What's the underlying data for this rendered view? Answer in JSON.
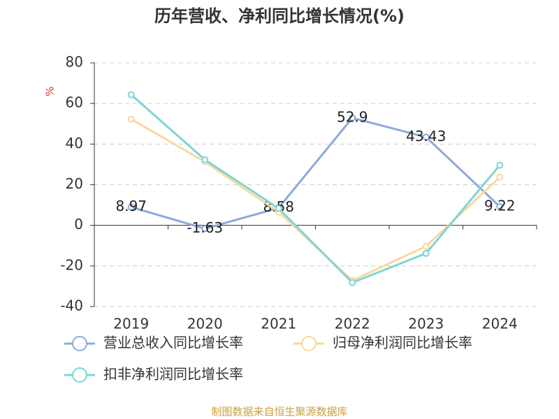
{
  "chart_data": {
    "type": "line",
    "title": "历年营收、净利同比增长情况(%)",
    "y_label": "%",
    "source": "制图数据来自恒生聚源数据库",
    "categories": [
      "2019",
      "2020",
      "2021",
      "2022",
      "2023",
      "2024"
    ],
    "series": [
      {
        "name": "营业总收入同比增长率",
        "color": "#8eaad8",
        "values": [
          8.97,
          -1.63,
          8.58,
          52.9,
          43.43,
          9.22
        ],
        "show_labels": true
      },
      {
        "name": "归母净利润同比增长率",
        "color": "#f8d99c",
        "values": [
          52.3,
          31.3,
          6.5,
          -27.2,
          -10.3,
          23.7
        ],
        "show_labels": false
      },
      {
        "name": "扣非净利润同比增长率",
        "color": "#7fd4d6",
        "values": [
          64.3,
          32.3,
          8.3,
          -28.2,
          -13.8,
          29.6
        ],
        "show_labels": false
      }
    ],
    "ylim": [
      -40,
      80
    ],
    "yticks": [
      -40,
      -20,
      0,
      20,
      40,
      60,
      80
    ],
    "grid": true
  }
}
